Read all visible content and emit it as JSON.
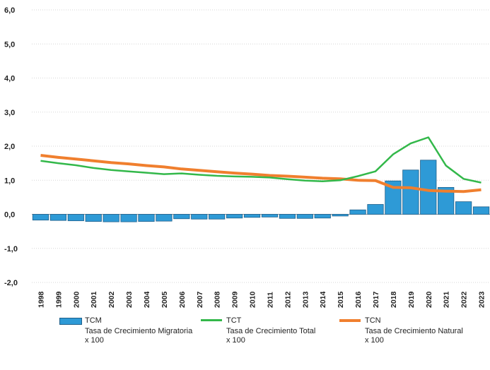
{
  "chart_data": {
    "type": "bar",
    "categories": [
      "1998",
      "1999",
      "2000",
      "2001",
      "2002",
      "2003",
      "2004",
      "2005",
      "2006",
      "2007",
      "2008",
      "2009",
      "2010",
      "2011",
      "2012",
      "2013",
      "2014",
      "2015",
      "2016",
      "2017",
      "2018",
      "2019",
      "2020",
      "2021",
      "2022",
      "2023"
    ],
    "ylim": [
      -2.0,
      6.0
    ],
    "yticks": [
      -2.0,
      -1.0,
      0.0,
      1.0,
      2.0,
      3.0,
      4.0,
      5.0,
      6.0
    ],
    "ytick_labels": [
      "-2,0",
      "-1,0",
      "0,0",
      "1,0",
      "2,0",
      "3,0",
      "4,0",
      "5,0",
      "6,0"
    ],
    "grid": true,
    "legend_position": "bottom",
    "series": [
      {
        "name": "TCM",
        "type": "bar",
        "color": "#2e9ad6",
        "values": [
          -0.17,
          -0.18,
          -0.19,
          -0.21,
          -0.22,
          -0.22,
          -0.21,
          -0.2,
          -0.13,
          -0.14,
          -0.14,
          -0.11,
          -0.09,
          -0.08,
          -0.12,
          -0.12,
          -0.11,
          -0.05,
          0.13,
          0.29,
          0.98,
          1.3,
          1.59,
          0.79,
          0.37,
          0.22
        ]
      },
      {
        "name": "TCT",
        "type": "line",
        "color": "#33b84a",
        "values": [
          1.57,
          1.5,
          1.44,
          1.36,
          1.3,
          1.26,
          1.22,
          1.18,
          1.2,
          1.16,
          1.13,
          1.11,
          1.1,
          1.08,
          1.03,
          0.99,
          0.97,
          1.0,
          1.12,
          1.26,
          1.76,
          2.08,
          2.26,
          1.43,
          1.04,
          0.93
        ]
      },
      {
        "name": "TCN",
        "type": "line",
        "color": "#f07f2e",
        "values": [
          1.73,
          1.67,
          1.62,
          1.57,
          1.52,
          1.48,
          1.43,
          1.39,
          1.33,
          1.29,
          1.25,
          1.21,
          1.18,
          1.14,
          1.12,
          1.09,
          1.06,
          1.04,
          1.0,
          0.99,
          0.79,
          0.78,
          0.7,
          0.68,
          0.67,
          0.72
        ]
      }
    ]
  },
  "legend": [
    {
      "name": "TCM",
      "description": "Tasa de Crecimiento Migratoria",
      "unit": "x 100",
      "color": "#2e9ad6",
      "kind": "bar"
    },
    {
      "name": "TCT",
      "description": "Tasa de Crecimiento Total",
      "unit": "x 100",
      "color": "#33b84a",
      "kind": "line"
    },
    {
      "name": "TCN",
      "description": "Tasa de Crecimiento Natural",
      "unit": "x 100",
      "color": "#f07f2e",
      "kind": "line"
    }
  ]
}
